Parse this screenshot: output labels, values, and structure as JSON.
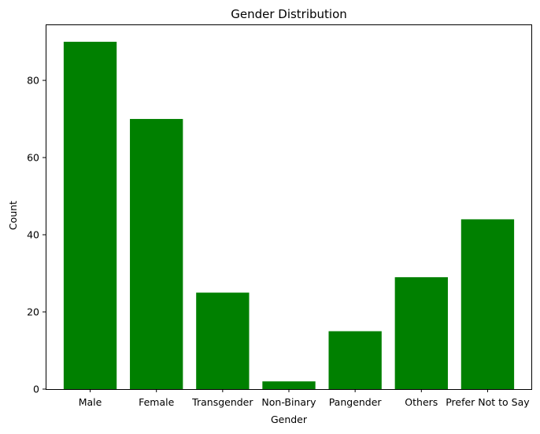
{
  "chart_data": {
    "type": "bar",
    "title": "Gender Distribution",
    "xlabel": "Gender",
    "ylabel": "Count",
    "categories": [
      "Male",
      "Female",
      "Transgender",
      "Non-Binary",
      "Pangender",
      "Others",
      "Prefer Not to Say"
    ],
    "values": [
      90,
      70,
      25,
      2,
      15,
      29,
      44
    ],
    "ylim": [
      0,
      94.5
    ],
    "yticks": [
      0,
      20,
      40,
      60,
      80
    ],
    "grid": false,
    "legend": "none",
    "bar_color": "#008000"
  }
}
